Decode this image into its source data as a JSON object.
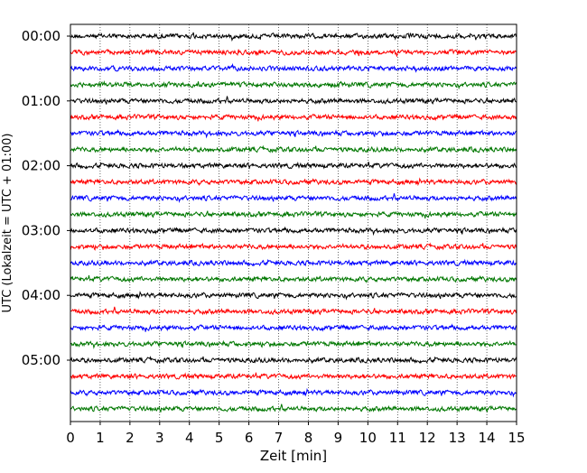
{
  "chart_data": {
    "type": "line",
    "title": "",
    "xlabel": "Zeit  [min]",
    "ylabel": "UTC (Lokalzeit = UTC + 01:00)",
    "xlim": [
      0,
      15
    ],
    "x_ticks": [
      "0",
      "1",
      "2",
      "3",
      "4",
      "5",
      "6",
      "7",
      "8",
      "9",
      "10",
      "11",
      "12",
      "13",
      "14",
      "15"
    ],
    "y_ticks": [
      "00:00",
      "01:00",
      "02:00",
      "03:00",
      "04:00",
      "05:00"
    ],
    "grid": "vertical dotted at each minute",
    "legend": "none",
    "trace_interval_min": 15,
    "first_trace": "00:00",
    "trace_count": 24,
    "trace_colors": [
      "#000000",
      "#ff0000",
      "#0000ff",
      "#007700"
    ],
    "trace_amplitude_relative": 0.2
  }
}
